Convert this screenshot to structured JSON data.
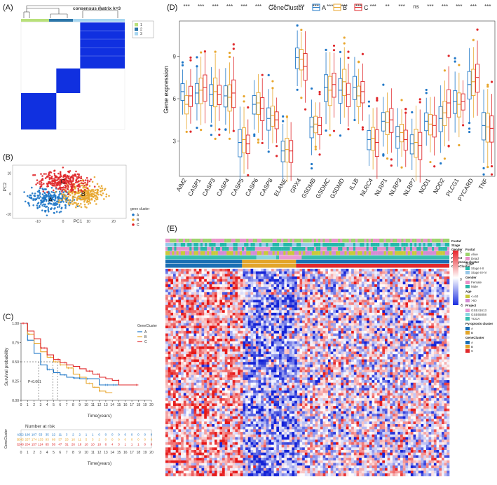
{
  "panels": {
    "A": {
      "label": "(A)",
      "title": "consensus matrix k=3",
      "legend": [
        "1",
        "2",
        "3"
      ],
      "colors": [
        "#b8e07a",
        "#2b75a8",
        "#a7d6f0"
      ]
    },
    "B": {
      "label": "(B)",
      "xlabel": "PC1",
      "ylabel": "PC2",
      "legend_title": "gene cluster",
      "legend": [
        "A",
        "B",
        "C"
      ],
      "xticks": [
        "-10",
        "0",
        "10",
        "20"
      ],
      "yticks": [
        "-10",
        "0",
        "10"
      ]
    },
    "C": {
      "label": "(C)",
      "ylabel": "Survival probability",
      "xlabel": "Time(years)",
      "pval": "P<0.001",
      "legend_title": "GeneCluster",
      "legend": [
        "A",
        "B",
        "C"
      ],
      "yticks": [
        "0.00",
        "0.25",
        "0.50",
        "0.75",
        "1.00"
      ],
      "risk_title": "Number at risk",
      "risk_ylabel": "GeneCluster",
      "risk_xlabel": "Time(years)"
    },
    "D": {
      "label": "(D)",
      "legend_title": "GeneCluster",
      "legend": [
        "A",
        "B",
        "C"
      ],
      "ylabel": "Gene expression",
      "yticks": [
        "3",
        "6",
        "9"
      ]
    },
    "E": {
      "label": "(E)",
      "track_names": [
        "Fustat",
        "Stage",
        "Gender",
        "Age",
        "Project",
        "Pyroptosis cluster",
        "GeneCluster"
      ],
      "scale": [
        "5",
        "0",
        "-5"
      ],
      "legend_groups": [
        {
          "title": "Fustat",
          "items": [
            [
              "Alive",
              "#9dd36b"
            ],
            [
              "Dead",
              "#e891c8"
            ]
          ]
        },
        {
          "title": "Stage",
          "items": [
            [
              "Stage I-II",
              "#23b8aa"
            ],
            [
              "Stage III-IV",
              "#98c8e8"
            ]
          ]
        },
        {
          "title": "Gender",
          "items": [
            [
              "Female",
              "#e891c8"
            ],
            [
              "Male",
              "#2bb6a8"
            ]
          ]
        },
        {
          "title": "Age",
          "items": [
            [
              "<=60",
              "#c9c93a"
            ],
            [
              ">60",
              "#d48bd4"
            ]
          ]
        },
        {
          "title": "Project",
          "items": [
            [
              "GSE41613",
              "#e89ad4"
            ],
            [
              "GSE65858",
              "#8bd6e0"
            ],
            [
              "TCGA",
              "#35bfb0"
            ]
          ]
        },
        {
          "title": "Pyroptosis cluster",
          "items": [
            [
              "A",
              "#1a6fb4"
            ],
            [
              "B",
              "#e3a529"
            ]
          ]
        },
        {
          "title": "GeneCluster",
          "items": [
            [
              "A",
              "#1a6fb4"
            ],
            [
              "B",
              "#e3a529"
            ],
            [
              "C",
              "#e0272a"
            ]
          ]
        }
      ]
    }
  },
  "colors": {
    "A": "#1f77c7",
    "B": "#e8a62c",
    "C": "#e0282b"
  },
  "chart_data": [
    {
      "type": "heatmap",
      "title": "consensus matrix k=3",
      "legend": [
        "1",
        "2",
        "3"
      ],
      "blocks": [
        {
          "cluster": "3",
          "fraction": 0.43
        },
        {
          "cluster": "2",
          "fraction": 0.23
        },
        {
          "cluster": "1",
          "fraction": 0.34
        }
      ]
    },
    {
      "type": "scatter",
      "xlabel": "PC1",
      "ylabel": "PC2",
      "legend_title": "gene cluster",
      "series": [
        {
          "name": "A",
          "center": [
            -5,
            -3
          ]
        },
        {
          "name": "B",
          "center": [
            8,
            0
          ]
        },
        {
          "name": "C",
          "center": [
            0,
            6
          ]
        }
      ],
      "xlim": [
        -20,
        25
      ],
      "ylim": [
        -12,
        14
      ]
    },
    {
      "type": "line",
      "ylabel": "Survival probability",
      "xlabel": "Time(years)",
      "ylim": [
        0,
        1
      ],
      "xlim": [
        0,
        20
      ],
      "legend_title": "GeneCluster",
      "annotation": "P<0.001",
      "x_ticks": [
        0,
        1,
        2,
        3,
        4,
        5,
        6,
        7,
        8,
        9,
        10,
        11,
        12,
        13,
        14,
        15,
        16,
        17,
        18,
        19,
        20
      ],
      "median_survival": {
        "A": 2.7,
        "B": 4.9,
        "C": 5.6
      },
      "series": [
        {
          "name": "A",
          "x": [
            0,
            1,
            2,
            3,
            4,
            5,
            6,
            7,
            8,
            9,
            10,
            11,
            12,
            13,
            14,
            15
          ],
          "y": [
            1.0,
            0.78,
            0.61,
            0.46,
            0.4,
            0.36,
            0.33,
            0.3,
            0.29,
            0.28,
            0.28,
            0.28,
            0.2,
            0.2,
            0.2,
            0.2
          ]
        },
        {
          "name": "B",
          "x": [
            0,
            1,
            2,
            3,
            4,
            5,
            6,
            7,
            8,
            9,
            10,
            11,
            12,
            13,
            14
          ],
          "y": [
            1.0,
            0.86,
            0.74,
            0.63,
            0.56,
            0.5,
            0.46,
            0.42,
            0.34,
            0.3,
            0.22,
            0.17,
            0.12,
            0.1,
            0.1
          ]
        },
        {
          "name": "C",
          "x": [
            0,
            1,
            2,
            3,
            4,
            5,
            6,
            7,
            8,
            9,
            10,
            11,
            12,
            13,
            14,
            15,
            16,
            17,
            18
          ],
          "y": [
            1.0,
            0.9,
            0.8,
            0.68,
            0.59,
            0.53,
            0.49,
            0.46,
            0.44,
            0.41,
            0.38,
            0.34,
            0.3,
            0.28,
            0.26,
            0.2,
            0.2,
            0.2,
            0.2
          ]
        }
      ],
      "risk_table": {
        "A": [
          "252",
          "180",
          "107",
          "53",
          "35",
          "22",
          "11",
          "3",
          "2",
          "2",
          "1",
          "1",
          "0",
          "0",
          "0",
          "0",
          "0",
          "0",
          "0",
          "0",
          "0"
        ],
        "B": [
          "345",
          "257",
          "174",
          "133",
          "93",
          "68",
          "37",
          "23",
          "16",
          "11",
          "5",
          "3",
          "2",
          "0",
          "0",
          "0",
          "0",
          "0",
          "0",
          "0",
          "0"
        ],
        "C": [
          "248",
          "204",
          "157",
          "124",
          "85",
          "58",
          "47",
          "31",
          "26",
          "18",
          "10",
          "10",
          "10",
          "6",
          "4",
          "3",
          "1",
          "1",
          "1",
          "0",
          "0"
        ]
      }
    },
    {
      "type": "box",
      "ylabel": "Gene expression",
      "ylim": [
        0.5,
        11.5
      ],
      "legend_title": "GeneCluster",
      "categories": [
        "AIM2",
        "CASP1",
        "CASP3",
        "CASP4",
        "CASP5",
        "CASP6",
        "CASP8",
        "ELANE",
        "GPX4",
        "GSDMB",
        "GSDMC",
        "GSDMD",
        "IL1B",
        "NLRC4",
        "NLRP1",
        "NLRP3",
        "NLRP7",
        "NOD1",
        "NOD2",
        "PLCG1",
        "PYCARD",
        "TNF"
      ],
      "significance": [
        "***",
        "***",
        "***",
        "***",
        "***",
        "***",
        "***",
        "**",
        "***",
        "***",
        "***",
        "***",
        "***",
        "***",
        "**",
        "***",
        "ns",
        "***",
        "***",
        "***",
        "***",
        "***"
      ],
      "series": [
        {
          "name": "A",
          "medians": [
            6.5,
            6.4,
            6.3,
            6.2,
            2.9,
            5.6,
            4.6,
            2.3,
            8.9,
            4.0,
            6.8,
            6.6,
            6.8,
            3.1,
            4.4,
            3.3,
            2.8,
            4.4,
            4.6,
            5.8,
            7.0,
            4.1
          ]
        },
        {
          "name": "B",
          "medians": [
            5.6,
            6.6,
            6.5,
            6.1,
            3.1,
            5.7,
            4.8,
            2.4,
            8.8,
            4.2,
            6.6,
            7.2,
            6.2,
            3.2,
            4.3,
            3.6,
            2.9,
            4.2,
            5.0,
            5.6,
            7.2,
            4.0
          ]
        },
        {
          "name": "C",
          "medians": [
            6.2,
            6.8,
            6.3,
            6.4,
            2.8,
            5.3,
            4.5,
            2.3,
            8.3,
            4.1,
            7.0,
            6.3,
            6.5,
            2.9,
            4.5,
            3.1,
            2.7,
            4.1,
            5.7,
            5.8,
            7.5,
            3.9
          ]
        }
      ]
    },
    {
      "type": "heatmap",
      "scale": [
        -5,
        0,
        5
      ],
      "column_groups": [
        {
          "name": "A",
          "fraction": 0.27
        },
        {
          "name": "B",
          "fraction": 0.19
        },
        {
          "name": "C",
          "fraction": 0.54
        }
      ],
      "tracks": [
        "Fustat",
        "Stage",
        "Gender",
        "Age",
        "Project",
        "Pyroptosis cluster",
        "GeneCluster"
      ]
    }
  ]
}
